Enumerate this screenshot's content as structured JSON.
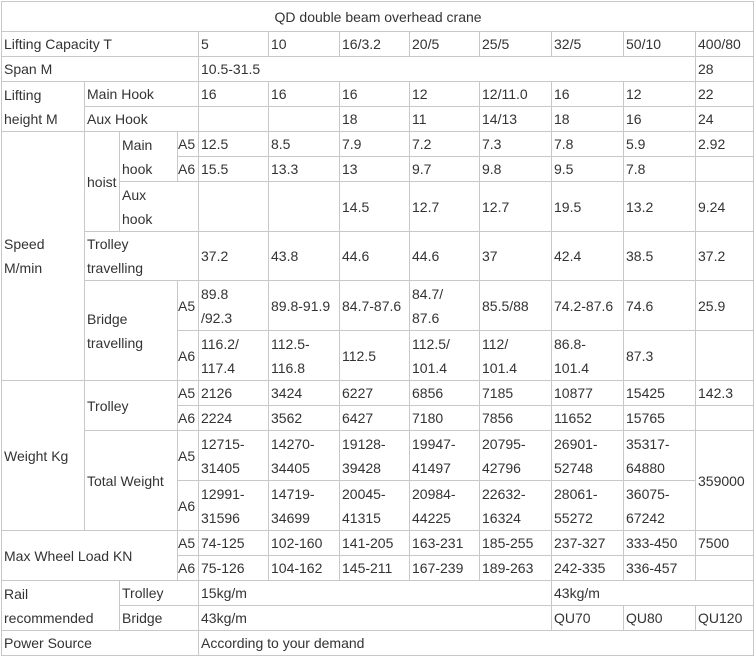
{
  "table": {
    "title": "QD double beam overhead crane",
    "rows": [
      [
        "Lifting Capacity   T",
        "5",
        "10",
        "16/3.2",
        "20/5",
        "25/5",
        "32/5",
        "50/10",
        "400/80"
      ],
      [
        "Span  M",
        "10.5-31.5",
        "28"
      ],
      [
        "Lifting\nheight M",
        "Main Hook",
        "16",
        "16",
        "16",
        "12",
        "12/11.0",
        "16",
        "12",
        "22"
      ],
      [
        "Aux Hook",
        "18",
        "11",
        "14/13",
        "18",
        "16",
        "24"
      ],
      [
        "Speed\nM/min",
        "hoist",
        "Main\nhook",
        "A5",
        "12.5",
        "8.5",
        "7.9",
        "7.2",
        "7.3",
        "7.8",
        "5.9",
        "2.92"
      ],
      [
        "A6",
        "15.5",
        "13.3",
        "13",
        "9.7",
        "9.8",
        "9.5",
        "7.8"
      ],
      [
        "Aux\nhook",
        "14.5",
        "12.7",
        "12.7",
        "19.5",
        "13.2",
        "9.24"
      ],
      [
        "Trolley\ntravelling",
        "37.2",
        "43.8",
        "44.6",
        "44.6",
        "37",
        "42.4",
        "38.5",
        "37.2"
      ],
      [
        "Bridge\ntravelling",
        "A5",
        "89.8\n/92.3",
        "89.8-91.9",
        "84.7-87.6",
        "84.7/\n87.6",
        "85.5/88",
        "74.2-87.6",
        "74.6",
        "25.9"
      ],
      [
        "A6",
        "116.2/\n117.4",
        "112.5-\n116.8",
        "112.5",
        "112.5/\n101.4",
        "112/\n101.4",
        "86.8-\n101.4",
        "87.3"
      ],
      [
        "Weight  Kg",
        "Trolley",
        "A5",
        "2126",
        "3424",
        "6227",
        "6856",
        "7185",
        "10877",
        "15425",
        "142.3"
      ],
      [
        "A6",
        "2224",
        "3562",
        "6427",
        "7180",
        "7856",
        "11652",
        "15765"
      ],
      [
        "Total Weight",
        "A5",
        "12715-\n31405",
        "14270-\n34405",
        "19128-\n39428",
        "19947-\n41497",
        "20795-\n42796",
        "26901-\n52748",
        "35317-\n64880",
        "359000"
      ],
      [
        "A6",
        "12991-\n31596",
        "14719-\n34699",
        "20045-\n41315",
        "20984-\n44225",
        "22632-\n16324",
        "28061-\n55272",
        "36075-\n67242"
      ],
      [
        "Max Wheel Load KN",
        "A5",
        "74-125",
        "102-160",
        "141-205",
        "163-231",
        "185-255",
        "237-327",
        "333-450",
        "7500"
      ],
      [
        "A6",
        "75-126",
        "104-162",
        "145-211",
        "167-239",
        "189-263",
        "242-335",
        "336-457"
      ],
      [
        "Rail\nrecommended",
        "Trolley",
        "15kg/m",
        "43kg/m"
      ],
      [
        "Bridge",
        "43kg/m",
        "QU70",
        "QU80",
        "QU120"
      ],
      [
        "Power Source",
        "According to your demand"
      ]
    ]
  }
}
